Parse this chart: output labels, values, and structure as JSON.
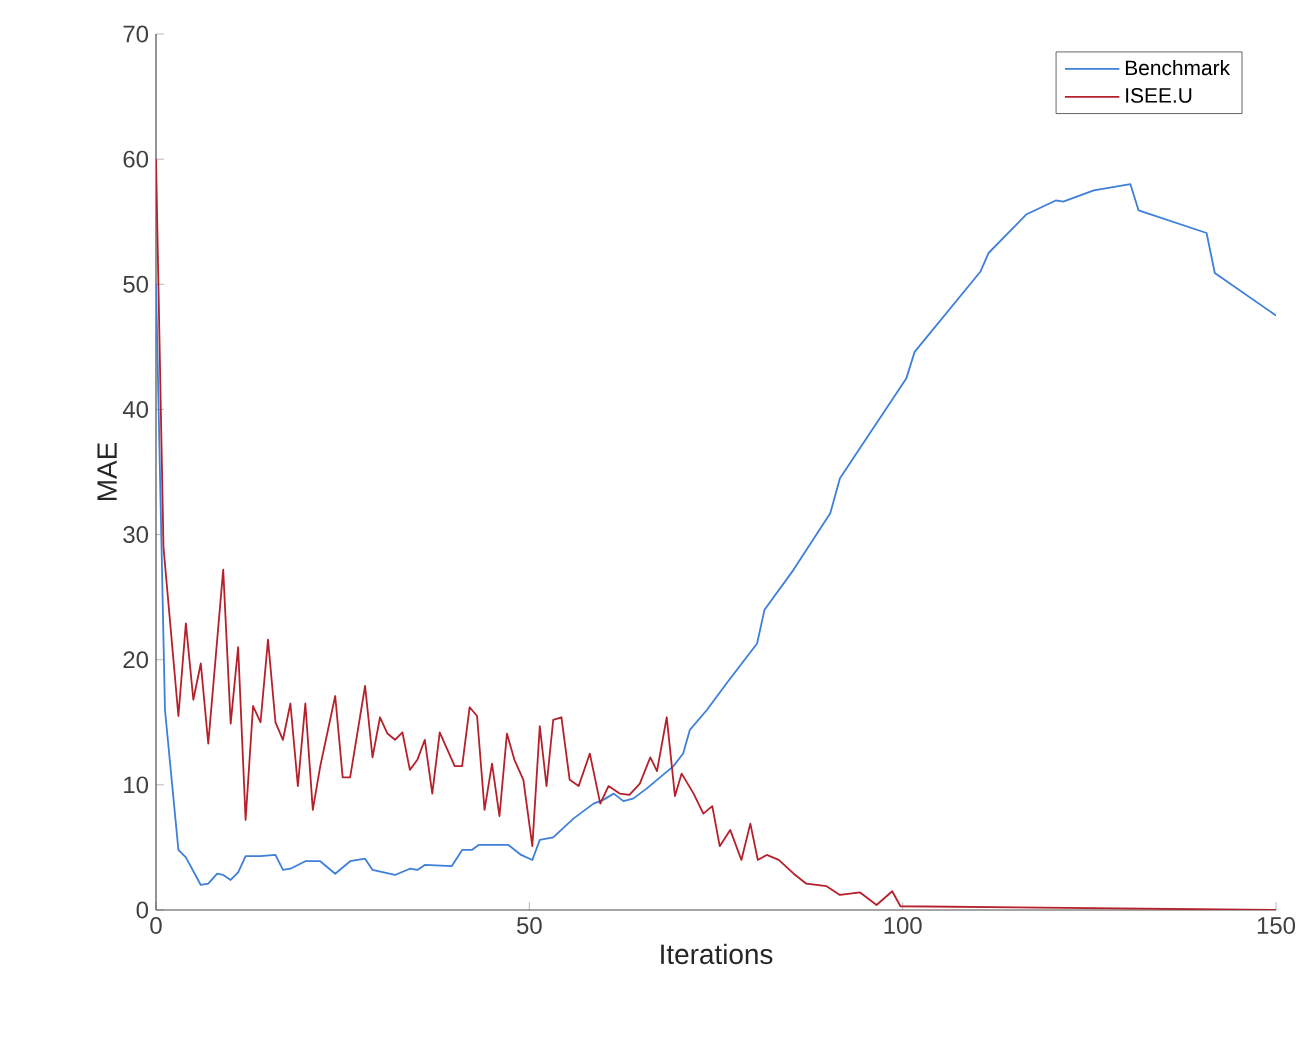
{
  "chart_data": {
    "type": "line",
    "xlabel": "Iterations",
    "ylabel": "MAE",
    "xlim": [
      0,
      150
    ],
    "ylim": [
      0,
      70
    ],
    "xticks": [
      0,
      50,
      100,
      150
    ],
    "yticks": [
      0,
      10,
      20,
      30,
      40,
      50,
      60,
      70
    ],
    "legend": "top right",
    "grid": false,
    "line_style": "solid",
    "marker": "none",
    "series": [
      {
        "name": "Benchmark",
        "color": "#3d7fd9",
        "x": [
          0,
          1.2,
          3,
          4,
          6,
          7,
          8.2,
          9,
          10,
          11,
          12,
          14,
          16,
          17,
          18,
          20,
          22,
          24,
          26,
          28,
          29,
          32,
          34,
          35,
          36,
          39.6,
          41,
          42.3,
          43.2,
          47.2,
          48.9,
          50.4,
          51.4,
          53.2,
          55.9,
          58.6,
          59.9,
          61.3,
          62.6,
          63.9,
          65.7,
          67.5,
          69.3,
          70.6,
          71.5,
          73.8,
          76.4,
          80.5,
          81.5,
          85.4,
          90.3,
          91.6,
          100.5,
          101.6,
          110.4,
          111.5,
          116.6,
          120.5,
          121.5,
          125.6,
          130.5,
          131.6,
          140.7,
          141.8,
          150
        ],
        "values": [
          50,
          16,
          4.8,
          4.2,
          2,
          2.1,
          2.9,
          2.8,
          2.4,
          3,
          4.3,
          4.3,
          4.4,
          3.2,
          3.3,
          3.9,
          3.9,
          2.9,
          3.9,
          4.1,
          3.2,
          2.8,
          3.3,
          3.2,
          3.6,
          3.5,
          4.8,
          4.8,
          5.2,
          5.2,
          4.4,
          4,
          5.6,
          5.8,
          7.3,
          8.5,
          8.8,
          9.3,
          8.7,
          8.9,
          9.7,
          10.6,
          11.5,
          12.5,
          14.4,
          16,
          18.1,
          21.3,
          24,
          27.2,
          31.7,
          34.5,
          42.5,
          44.6,
          51,
          52.5,
          55.6,
          56.7,
          56.6,
          57.5,
          58,
          55.9,
          54.1,
          50.9,
          47.5
        ]
      },
      {
        "name": "ISEE.U",
        "color": "#b5202a",
        "x": [
          0,
          1,
          3,
          4,
          5,
          6,
          7,
          9,
          10,
          11,
          12,
          13,
          14,
          15,
          16,
          17,
          18,
          19,
          20,
          21,
          22,
          24,
          25,
          26,
          28,
          29,
          30,
          31,
          32,
          33,
          34,
          35,
          36,
          37,
          38,
          40,
          41,
          42,
          43,
          44,
          45,
          46,
          47,
          48,
          49.2,
          50.4,
          51.4,
          52.3,
          53.2,
          54.3,
          55.4,
          56.6,
          58.1,
          59.5,
          60.6,
          62.1,
          63.4,
          64.8,
          66.2,
          67.1,
          68.4,
          69.5,
          70.4,
          72,
          73.3,
          74.5,
          75.5,
          76.9,
          78.4,
          79.6,
          80.6,
          81.8,
          83.4,
          85.4,
          87.1,
          89.8,
          91.6,
          94.3,
          96.5,
          98.6,
          99.7,
          150
        ],
        "values": [
          60,
          29,
          15.5,
          22.9,
          16.8,
          19.7,
          13.3,
          27.2,
          14.9,
          21,
          7.2,
          16.3,
          15,
          21.6,
          15,
          13.6,
          16.5,
          9.9,
          16.5,
          8,
          11.5,
          17.1,
          10.6,
          10.6,
          17.9,
          12.2,
          15.4,
          14.1,
          13.6,
          14.2,
          11.2,
          12,
          13.6,
          9.3,
          14.2,
          11.5,
          11.5,
          16.2,
          15.5,
          8,
          11.7,
          7.5,
          14.1,
          12,
          10.4,
          5.1,
          14.7,
          9.9,
          15.2,
          15.4,
          10.4,
          9.9,
          12.5,
          8.5,
          9.9,
          9.3,
          9.2,
          10.1,
          12.2,
          11.1,
          15.4,
          9.1,
          10.9,
          9.3,
          7.7,
          8.3,
          5.1,
          6.4,
          4,
          6.9,
          4,
          4.4,
          4,
          2.9,
          2.1,
          1.9,
          1.2,
          1.4,
          0.4,
          1.5,
          0.3,
          0
        ]
      }
    ]
  }
}
